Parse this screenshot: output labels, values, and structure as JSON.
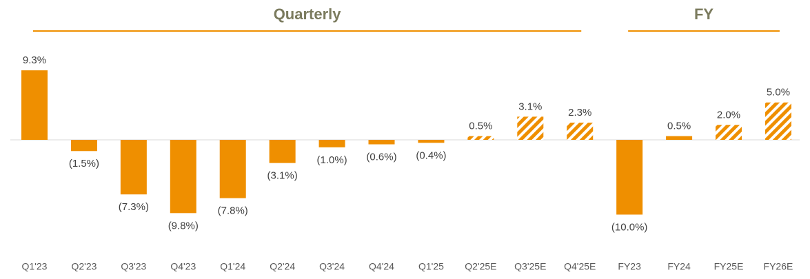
{
  "chart_data": {
    "type": "bar",
    "categories": [
      "Q1'23",
      "Q2'23",
      "Q3'23",
      "Q4'23",
      "Q1'24",
      "Q2'24",
      "Q3'24",
      "Q4'24",
      "Q1'25",
      "Q2'25E",
      "Q3'25E",
      "Q4'25E",
      "FY23",
      "FY24",
      "FY25E",
      "FY26E"
    ],
    "values": [
      9.3,
      -1.5,
      -7.3,
      -9.8,
      -7.8,
      -3.1,
      -1.0,
      -0.6,
      -0.4,
      0.5,
      3.1,
      2.3,
      -10.0,
      0.5,
      2.0,
      5.0
    ],
    "value_labels": [
      "9.3%",
      "(1.5%)",
      "(7.3%)",
      "(9.8%)",
      "(7.8%)",
      "(3.1%)",
      "(1.0%)",
      "(0.6%)",
      "(0.4%)",
      "0.5%",
      "3.1%",
      "2.3%",
      "(10.0%)",
      "0.5%",
      "2.0%",
      "5.0%"
    ],
    "hatched": [
      false,
      false,
      false,
      false,
      false,
      false,
      false,
      false,
      false,
      true,
      true,
      true,
      false,
      false,
      true,
      true
    ],
    "color": "#ef8f00",
    "groups": [
      {
        "label": "Quarterly",
        "count": 12
      },
      {
        "label": "FY",
        "count": 4
      }
    ]
  }
}
